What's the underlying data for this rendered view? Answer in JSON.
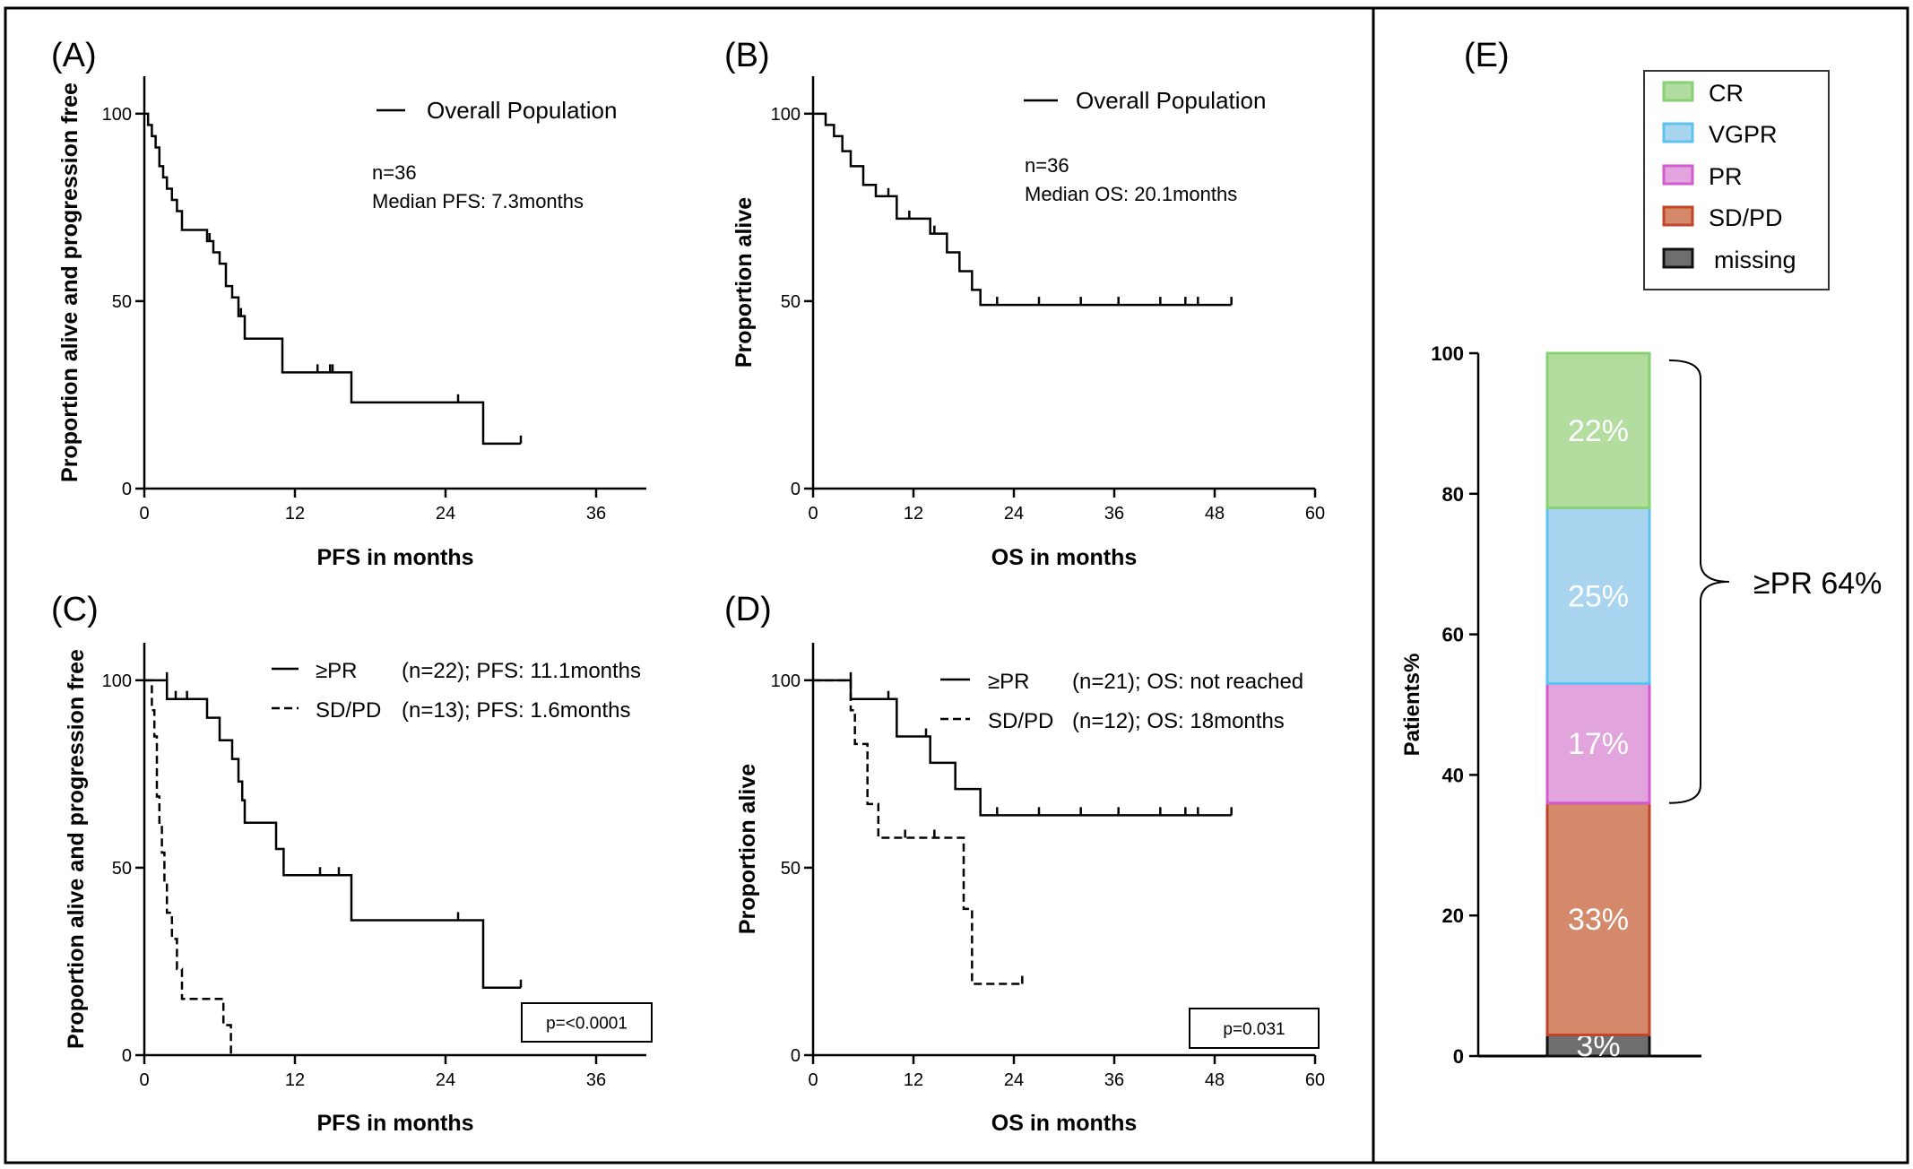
{
  "panels": {
    "A": {
      "label": "(A)"
    },
    "B": {
      "label": "(B)"
    },
    "C": {
      "label": "(C)"
    },
    "D": {
      "label": "(D)"
    },
    "E": {
      "label": "(E)"
    }
  },
  "chart_data": [
    {
      "id": "A",
      "type": "line",
      "step": true,
      "xlabel": "PFS in months",
      "ylabel": "Proportion alive and progression free",
      "xlim": [
        0,
        40
      ],
      "ylim": [
        0,
        110
      ],
      "xticks": [
        0,
        12,
        24,
        36
      ],
      "yticks": [
        0,
        50,
        100
      ],
      "legend": [
        "Overall Population"
      ],
      "annotations": [
        "n=36",
        "Median PFS: 7.3months"
      ],
      "series": [
        {
          "name": "Overall Population",
          "dash": "solid",
          "x": [
            0,
            0.3,
            0.6,
            0.9,
            1.2,
            1.5,
            1.8,
            2.2,
            2.6,
            3.0,
            4.5,
            5.0,
            5.5,
            6.0,
            6.5,
            7.0,
            7.5,
            8.0,
            11.0,
            16.5,
            27.0,
            30.0
          ],
          "y": [
            100,
            97,
            94,
            91,
            86,
            83,
            80,
            77,
            74,
            69,
            69,
            66,
            63,
            60,
            54,
            51,
            46,
            40,
            31,
            23,
            12,
            12
          ],
          "censor_x": [
            5.2,
            7.7,
            13.8,
            14.8,
            15.0,
            25.0,
            30.0
          ],
          "censor_y": [
            66,
            46,
            31,
            31,
            31,
            23,
            12
          ]
        }
      ]
    },
    {
      "id": "B",
      "type": "line",
      "step": true,
      "xlabel": "OS in months",
      "ylabel": "Proportion alive",
      "xlim": [
        0,
        60
      ],
      "ylim": [
        0,
        110
      ],
      "xticks": [
        0,
        12,
        24,
        36,
        48,
        60
      ],
      "yticks": [
        0,
        50,
        100
      ],
      "legend": [
        "Overall Population"
      ],
      "annotations": [
        "n=36",
        "Median OS: 20.1months"
      ],
      "series": [
        {
          "name": "Overall Population",
          "dash": "solid",
          "x": [
            0,
            1.5,
            2.5,
            3.5,
            4.5,
            6.0,
            7.5,
            10.0,
            14.0,
            16.0,
            17.5,
            19.0,
            20.0,
            50.0
          ],
          "y": [
            100,
            97,
            94,
            90,
            86,
            81,
            78,
            72,
            68,
            63,
            58,
            53,
            49,
            49
          ],
          "censor_x": [
            9.0,
            11.5,
            14.5,
            22.0,
            27.0,
            32.0,
            36.5,
            41.5,
            44.5,
            46.0,
            50.0
          ],
          "censor_y": [
            78,
            72,
            68,
            49,
            49,
            49,
            49,
            49,
            49,
            49,
            49
          ]
        }
      ]
    },
    {
      "id": "C",
      "type": "line",
      "step": true,
      "xlabel": "PFS in months",
      "ylabel": "Proportion alive and progression free",
      "xlim": [
        0,
        40
      ],
      "ylim": [
        0,
        110
      ],
      "xticks": [
        0,
        12,
        24,
        36
      ],
      "yticks": [
        0,
        50,
        100
      ],
      "legend": [
        "≥PR",
        "SD/PD"
      ],
      "legend_info": [
        "(n=22); PFS: 11.1months",
        "(n=13); PFS: 1.6months"
      ],
      "pvalue": "p=<0.0001",
      "series": [
        {
          "name": "≥PR",
          "dash": "solid",
          "x": [
            0,
            1.8,
            4.7,
            5.0,
            6.0,
            7.0,
            7.5,
            7.8,
            8.0,
            10.5,
            11.1,
            16.5,
            27.0,
            30.0
          ],
          "y": [
            100,
            95,
            95,
            90,
            84,
            79,
            73,
            68,
            62,
            55,
            48,
            36,
            18,
            18
          ],
          "censor_x": [
            1.8,
            2.5,
            3.4,
            14.0,
            15.5,
            25.0,
            30.0
          ],
          "censor_y": [
            100,
            95,
            95,
            48,
            48,
            36,
            18
          ]
        },
        {
          "name": "SD/PD",
          "dash": "dashed",
          "x": [
            0,
            0.6,
            0.8,
            1.0,
            1.2,
            1.4,
            1.6,
            1.8,
            2.2,
            2.6,
            3.0,
            6.3,
            6.9
          ],
          "y": [
            100,
            92,
            85,
            69,
            62,
            54,
            46,
            38,
            31,
            23,
            15,
            8,
            0
          ],
          "censor_x": [],
          "censor_y": []
        }
      ]
    },
    {
      "id": "D",
      "type": "line",
      "step": true,
      "xlabel": "OS in months",
      "ylabel": "Proportion alive",
      "xlim": [
        0,
        60
      ],
      "ylim": [
        0,
        110
      ],
      "xticks": [
        0,
        12,
        24,
        36,
        48,
        60
      ],
      "yticks": [
        0,
        50,
        100
      ],
      "legend": [
        "≥PR",
        "SD/PD"
      ],
      "legend_info": [
        "(n=21);  OS: not reached",
        "(n=12); OS: 18months"
      ],
      "pvalue": "p=0.031",
      "series": [
        {
          "name": "≥PR",
          "dash": "solid",
          "x": [
            0,
            4.5,
            10.0,
            14.0,
            17.0,
            20.0,
            50.0
          ],
          "y": [
            100,
            95,
            85,
            78,
            71,
            64,
            64
          ],
          "censor_x": [
            9.0,
            13.5,
            22.0,
            27.0,
            32.0,
            36.5,
            41.5,
            44.5,
            46.0,
            50.0
          ],
          "censor_y": [
            95,
            85,
            64,
            64,
            64,
            64,
            64,
            64,
            64,
            64
          ]
        },
        {
          "name": "SD/PD",
          "dash": "dashed",
          "x": [
            0,
            4.5,
            5.0,
            6.5,
            7.8,
            18.0,
            19.0,
            25.0
          ],
          "y": [
            100,
            92,
            83,
            67,
            58,
            39,
            19,
            19
          ],
          "censor_x": [
            4.5,
            11.0,
            14.5,
            25.0
          ],
          "censor_y": [
            100,
            58,
            58,
            19
          ]
        }
      ]
    },
    {
      "id": "E",
      "type": "bar",
      "stacked": true,
      "ylabel": "Patients%",
      "ylim": [
        0,
        100
      ],
      "yticks": [
        0,
        20,
        40,
        60,
        80,
        100
      ],
      "legend": [
        "CR",
        "VGPR",
        "PR",
        "SD/PD",
        "missing"
      ],
      "segments": [
        {
          "name": "missing",
          "value": 3,
          "label": "3%",
          "fill": "#6e6e6e",
          "stroke": "#111111"
        },
        {
          "name": "SD/PD",
          "value": 33,
          "label": "33%",
          "fill": "#d4896a",
          "stroke": "#c2452a"
        },
        {
          "name": "PR",
          "value": 17,
          "label": "17%",
          "fill": "#e2a4dc",
          "stroke": "#d45bcf"
        },
        {
          "name": "VGPR",
          "value": 25,
          "label": "25%",
          "fill": "#a8d4ef",
          "stroke": "#5cc3ee"
        },
        {
          "name": "CR",
          "value": 22,
          "label": "22%",
          "fill": "#b3dd9f",
          "stroke": "#86d173"
        }
      ],
      "bracket_label": "≥PR 64%",
      "bracket_range": [
        36,
        100
      ]
    }
  ]
}
